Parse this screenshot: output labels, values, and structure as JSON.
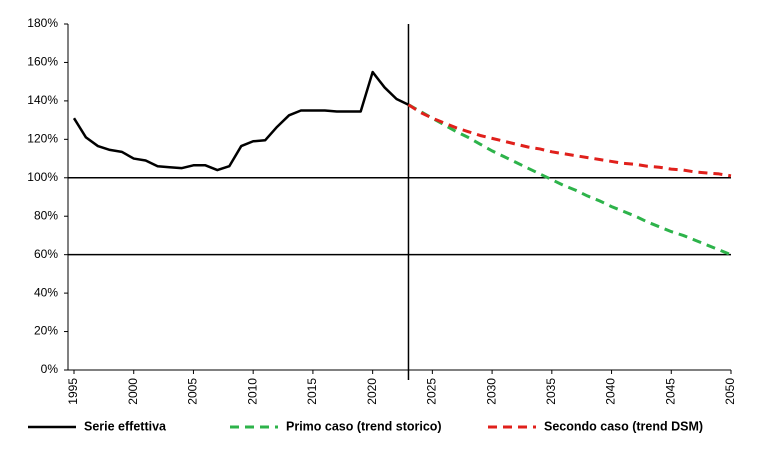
{
  "chart_data": {
    "type": "line",
    "x": [
      1995,
      1996,
      1997,
      1998,
      1999,
      2000,
      2001,
      2002,
      2003,
      2004,
      2005,
      2006,
      2007,
      2008,
      2009,
      2010,
      2011,
      2012,
      2013,
      2014,
      2015,
      2016,
      2017,
      2018,
      2019,
      2020,
      2021,
      2022,
      2023,
      2024,
      2025,
      2026,
      2027,
      2028,
      2029,
      2030,
      2031,
      2032,
      2033,
      2034,
      2035,
      2036,
      2037,
      2038,
      2039,
      2040,
      2041,
      2042,
      2043,
      2044,
      2045,
      2046,
      2047,
      2048,
      2049,
      2050
    ],
    "series": [
      {
        "name": "Serie effettiva",
        "color": "#000000",
        "dashed": false,
        "values": [
          131,
          121,
          116.5,
          114.5,
          113.5,
          110,
          109,
          106,
          105.5,
          105,
          106.5,
          106.5,
          104,
          106,
          116.5,
          119,
          119.5,
          126.5,
          132.5,
          135,
          135,
          135,
          134.5,
          134.5,
          134.5,
          155,
          147,
          141,
          138,
          null,
          null,
          null,
          null,
          null,
          null,
          null,
          null,
          null,
          null,
          null,
          null,
          null,
          null,
          null,
          null,
          null,
          null,
          null,
          null,
          null,
          null,
          null,
          null,
          null,
          null,
          null
        ]
      },
      {
        "name": "Primo caso (trend storico)",
        "color": "#2db34a",
        "dashed": true,
        "values": [
          null,
          null,
          null,
          null,
          null,
          null,
          null,
          null,
          null,
          null,
          null,
          null,
          null,
          null,
          null,
          null,
          null,
          null,
          null,
          null,
          null,
          null,
          null,
          null,
          null,
          null,
          null,
          null,
          138,
          134.5,
          131,
          127.5,
          124,
          121,
          117.5,
          114,
          111,
          108,
          105,
          102,
          99,
          96,
          93.5,
          90.5,
          88,
          85,
          82.5,
          80,
          77,
          74.5,
          72,
          70,
          67.5,
          65,
          62.5,
          60
        ]
      },
      {
        "name": "Secondo caso (trend DSM)",
        "color": "#e0201b",
        "dashed": true,
        "values": [
          null,
          null,
          null,
          null,
          null,
          null,
          null,
          null,
          null,
          null,
          null,
          null,
          null,
          null,
          null,
          null,
          null,
          null,
          null,
          null,
          null,
          null,
          null,
          null,
          null,
          null,
          null,
          null,
          138,
          134,
          131,
          128.5,
          126,
          124,
          122,
          120.5,
          119,
          117.5,
          116,
          115,
          113.5,
          112.5,
          111.5,
          110.5,
          109.5,
          108.5,
          107.5,
          107,
          106,
          105.5,
          104.5,
          104,
          103,
          102.5,
          102,
          101
        ]
      }
    ],
    "xlim": [
      1995,
      2050
    ],
    "xticks": [
      1995,
      2000,
      2005,
      2010,
      2015,
      2020,
      2025,
      2030,
      2035,
      2040,
      2045,
      2050
    ],
    "ylim": [
      0,
      180
    ],
    "yticks": [
      {
        "value": 0,
        "label": "0%"
      },
      {
        "value": 20,
        "label": "20%"
      },
      {
        "value": 40,
        "label": "40%"
      },
      {
        "value": 60,
        "label": "60%"
      },
      {
        "value": 80,
        "label": "80%"
      },
      {
        "value": 100,
        "label": "100%"
      },
      {
        "value": 120,
        "label": "120%"
      },
      {
        "value": 140,
        "label": "140%"
      },
      {
        "value": 160,
        "label": "160%"
      },
      {
        "value": 180,
        "label": "180%"
      }
    ],
    "hlines": [
      100,
      60
    ],
    "vline": 2023,
    "grid": false,
    "legend": "bottom"
  }
}
